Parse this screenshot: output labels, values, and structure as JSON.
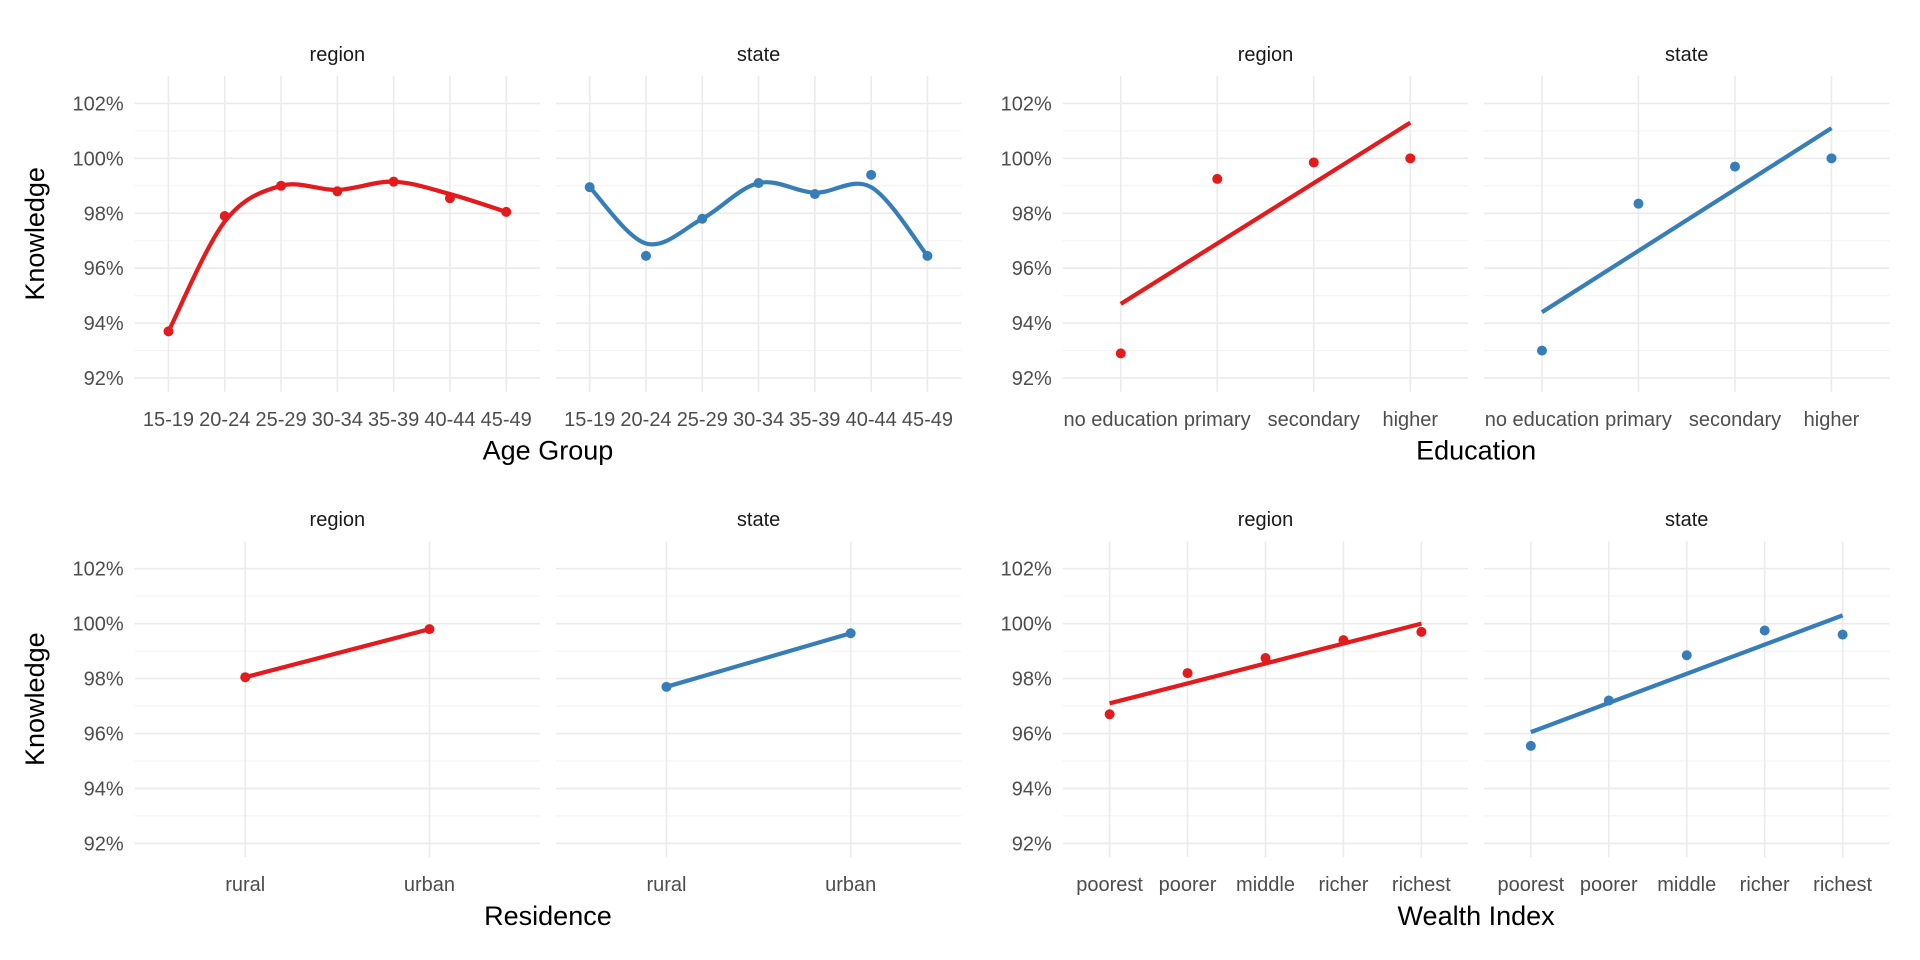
{
  "colors": {
    "region": "#e41a1c",
    "state": "#377eb8",
    "grid": "#ebebeb",
    "text": "#4d4d4d"
  },
  "chart_data": [
    {
      "id": "age",
      "type": "scatter",
      "xlabel": "Age Group",
      "ylabel": "Knowledge",
      "categories": [
        "15-19",
        "20-24",
        "25-29",
        "30-34",
        "35-39",
        "40-44",
        "45-49"
      ],
      "ylim": [
        91.5,
        103
      ],
      "yticks": [
        "92%",
        "94%",
        "96%",
        "98%",
        "100%",
        "102%"
      ],
      "fit": "loess",
      "panels": [
        {
          "name": "region",
          "points": [
            93.7,
            97.9,
            99.0,
            98.8,
            99.15,
            98.55,
            98.05
          ],
          "fit_values": [
            93.7,
            97.7,
            99.0,
            98.85,
            99.15,
            98.7,
            98.05
          ]
        },
        {
          "name": "state",
          "points": [
            98.95,
            96.45,
            97.8,
            99.1,
            98.7,
            99.4,
            96.45
          ],
          "fit_values": [
            98.95,
            96.9,
            97.8,
            99.1,
            98.75,
            98.95,
            96.45
          ]
        }
      ]
    },
    {
      "id": "education",
      "type": "scatter",
      "xlabel": "Education",
      "ylabel": "",
      "categories": [
        "no education",
        "primary",
        "secondary",
        "higher"
      ],
      "ylim": [
        91.5,
        103
      ],
      "yticks": [
        "92%",
        "94%",
        "96%",
        "98%",
        "100%",
        "102%"
      ],
      "fit": "linear",
      "panels": [
        {
          "name": "region",
          "points": [
            92.9,
            99.25,
            99.85,
            100.0
          ],
          "fit_values": [
            94.7,
            101.3
          ]
        },
        {
          "name": "state",
          "points": [
            93.0,
            98.35,
            99.7,
            100.0
          ],
          "fit_values": [
            94.4,
            101.1
          ]
        }
      ]
    },
    {
      "id": "residence",
      "type": "scatter",
      "xlabel": "Residence",
      "ylabel": "Knowledge",
      "categories": [
        "rural",
        "urban"
      ],
      "ylim": [
        91.5,
        103
      ],
      "yticks": [
        "92%",
        "94%",
        "96%",
        "98%",
        "100%",
        "102%"
      ],
      "fit": "linear",
      "panels": [
        {
          "name": "region",
          "points": [
            98.05,
            99.8
          ],
          "fit_values": [
            98.05,
            99.8
          ]
        },
        {
          "name": "state",
          "points": [
            97.7,
            99.65
          ],
          "fit_values": [
            97.7,
            99.65
          ]
        }
      ]
    },
    {
      "id": "wealth",
      "type": "scatter",
      "xlabel": "Wealth Index",
      "ylabel": "",
      "categories": [
        "poorest",
        "poorer",
        "middle",
        "richer",
        "richest"
      ],
      "ylim": [
        91.5,
        103
      ],
      "yticks": [
        "92%",
        "94%",
        "96%",
        "98%",
        "100%",
        "102%"
      ],
      "fit": "linear",
      "panels": [
        {
          "name": "region",
          "points": [
            96.7,
            98.2,
            98.75,
            99.4,
            99.7
          ],
          "fit_values": [
            97.1,
            100.0
          ]
        },
        {
          "name": "state",
          "points": [
            95.55,
            97.2,
            98.85,
            99.75,
            99.6
          ],
          "fit_values": [
            96.05,
            100.3
          ]
        }
      ]
    }
  ]
}
